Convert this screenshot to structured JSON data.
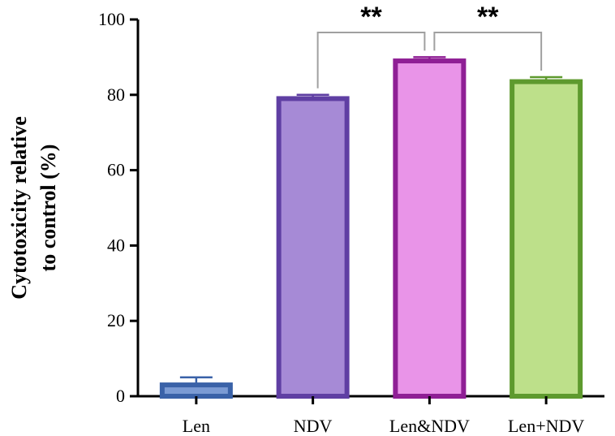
{
  "chart_data": {
    "type": "bar",
    "title": "",
    "xlabel": "",
    "ylabel_lines": [
      "Cytotoxicity relative",
      "to control (%)"
    ],
    "ylim": [
      0,
      100
    ],
    "yticks": [
      0,
      20,
      40,
      60,
      80,
      100
    ],
    "categories": [
      "Len",
      "NDV",
      "Len&NDV",
      "Len+NDV"
    ],
    "values": [
      3,
      79,
      89,
      83.5
    ],
    "errors": [
      2,
      1,
      1,
      1.2
    ],
    "fill_colors": [
      "#7b9bd4",
      "#a68ad6",
      "#e994e8",
      "#bde08a"
    ],
    "edge_colors": [
      "#3a62a8",
      "#5f3fa3",
      "#8f1f95",
      "#5e9a2e"
    ],
    "significance": [
      {
        "from": 1,
        "to": 2,
        "label": "**"
      },
      {
        "from": 2,
        "to": 3,
        "label": "**"
      }
    ],
    "bracket_color": "#a0a0a0",
    "grid": false
  }
}
